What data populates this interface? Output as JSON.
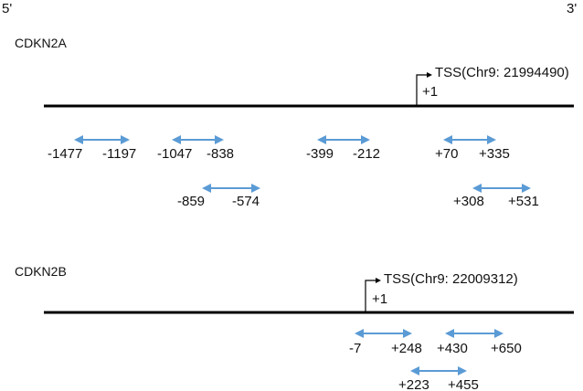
{
  "orientation": {
    "left": "5'",
    "right": "3'"
  },
  "colors": {
    "line": "#000000",
    "arrow": "#5b9bd5"
  },
  "genes": [
    {
      "name": "CDKN2A",
      "tss_label": "TSS(Chr9: 21994490)",
      "tss_pos": "+1",
      "amplicons": [
        {
          "start": "-1477",
          "end": "-1197"
        },
        {
          "start": "-1047",
          "end": "-838"
        },
        {
          "start": "-399",
          "end": "-212"
        },
        {
          "start": "+70",
          "end": "+335"
        },
        {
          "start": "-859",
          "end": "-574"
        },
        {
          "start": "+308",
          "end": "+531"
        }
      ]
    },
    {
      "name": "CDKN2B",
      "tss_label": "TSS(Chr9: 22009312)",
      "tss_pos": "+1",
      "amplicons": [
        {
          "start": "-7",
          "end": "+248"
        },
        {
          "start": "+430",
          "end": "+650"
        },
        {
          "start": "+223",
          "end": "+455"
        }
      ]
    }
  ]
}
